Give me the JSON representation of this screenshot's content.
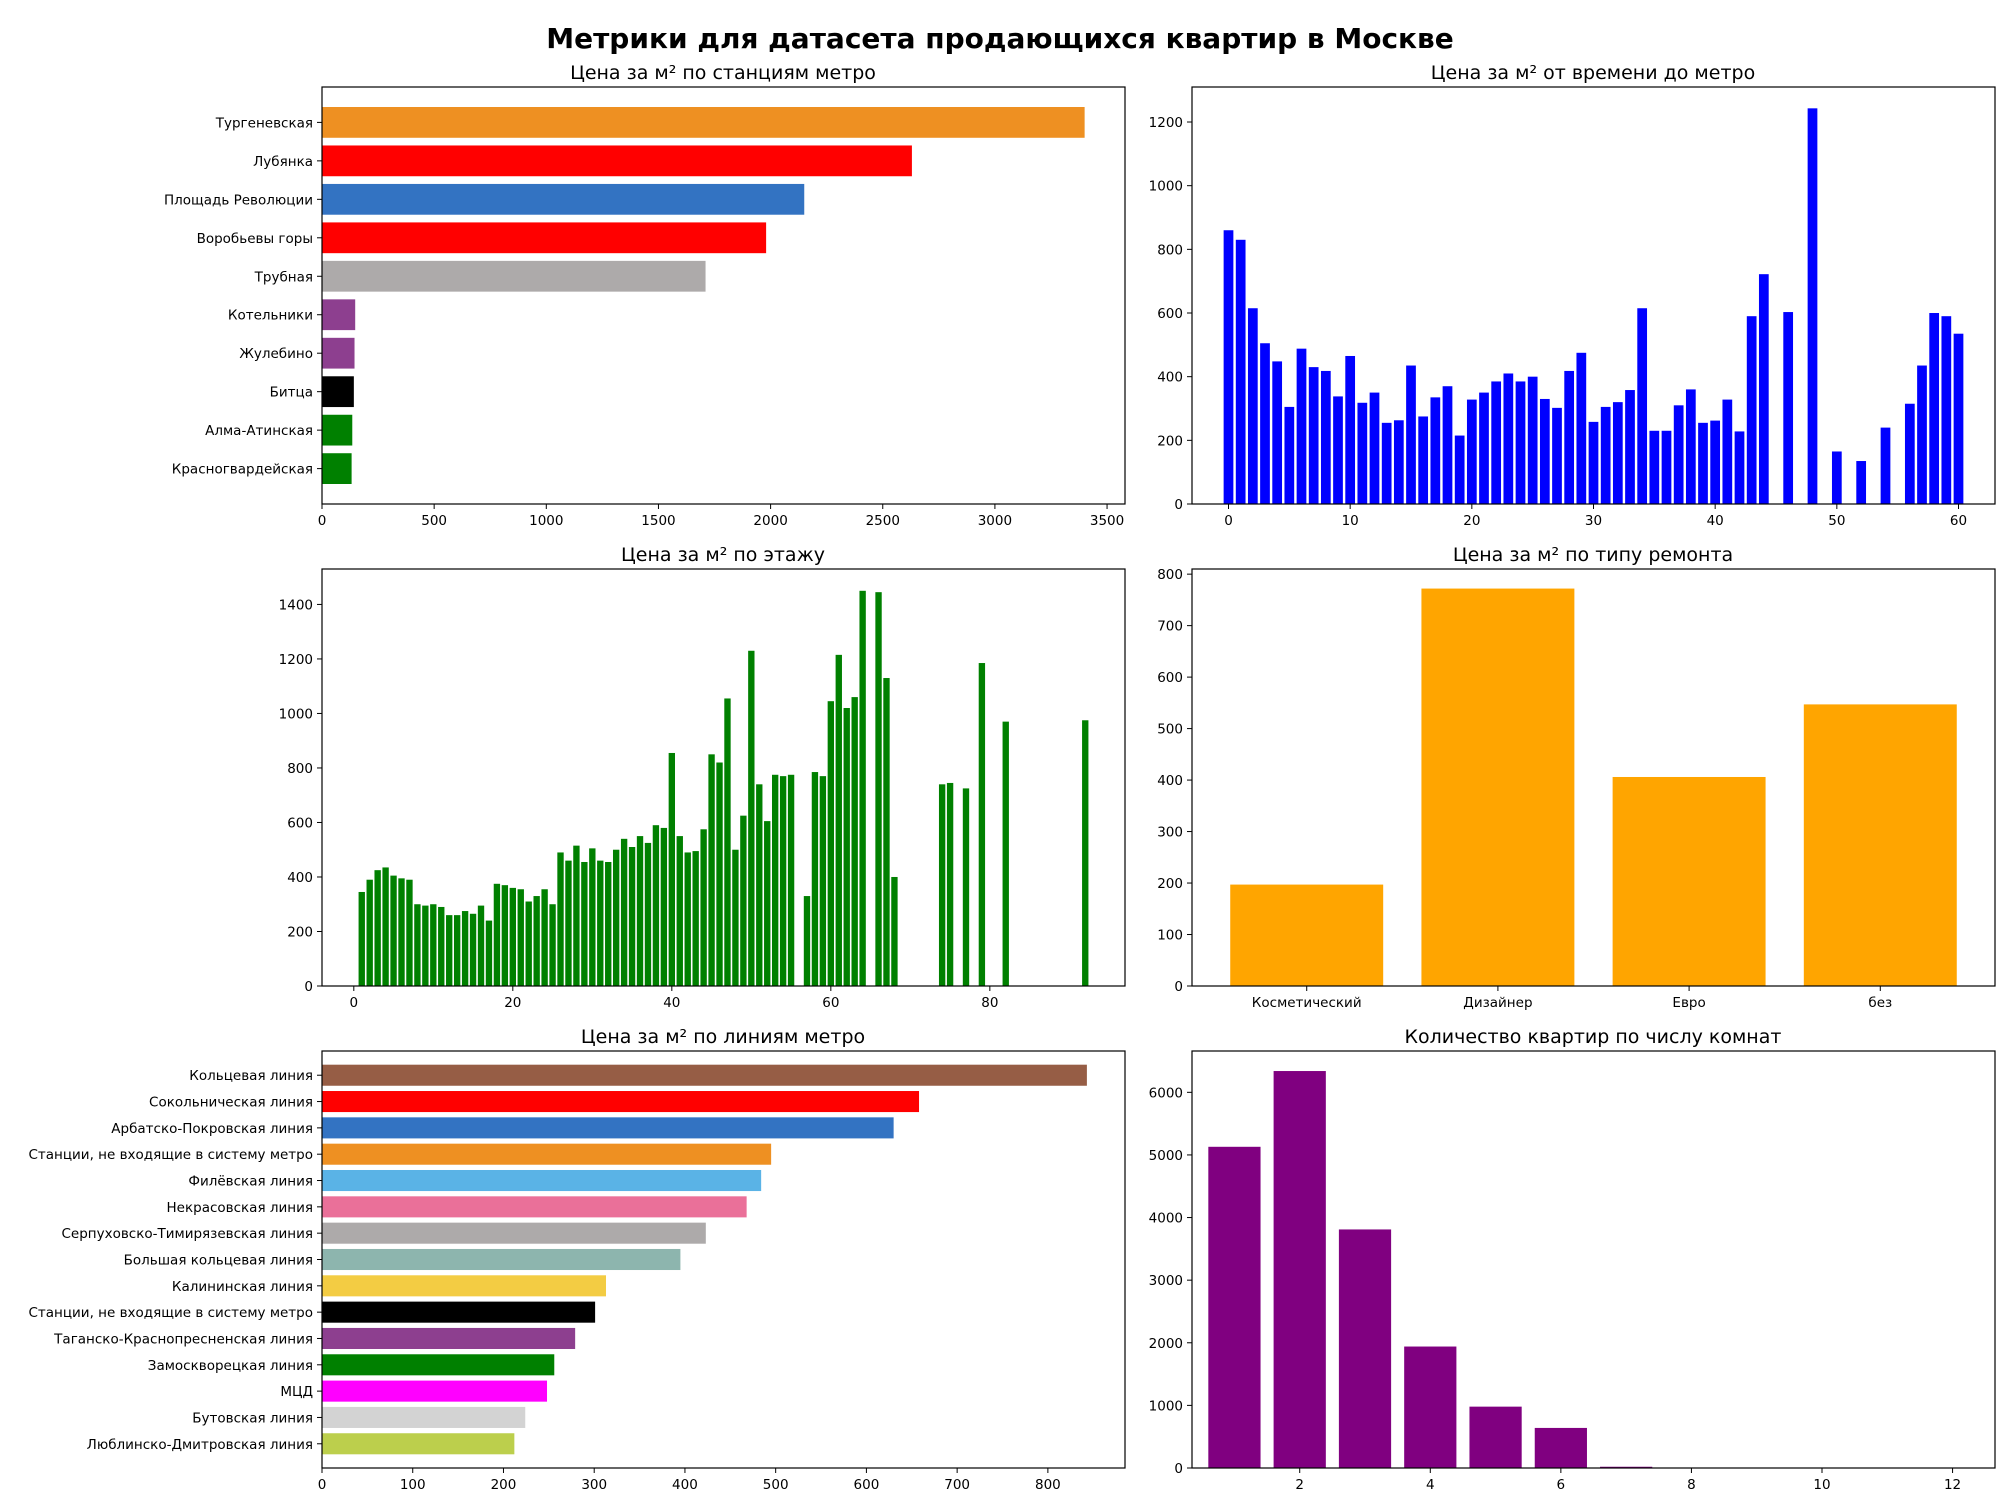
{
  "title": "Метрики для датасета продающихся квартир в Москве",
  "chart_data": [
    {
      "id": "stations",
      "type": "bar",
      "orientation": "horizontal",
      "title": "Цена за м² по станциям метро",
      "categories": [
        "Тургеневская",
        "Лубянка",
        "Площадь Революции",
        "Воробьевы горы",
        "Трубная",
        "Котельники",
        "Жулебино",
        "Битца",
        "Алма-Атинская",
        "Красногвардейская"
      ],
      "values": [
        3400,
        2630,
        2150,
        1980,
        1710,
        148,
        145,
        142,
        135,
        132
      ],
      "colors": [
        "#ee9022",
        "#ff0000",
        "#3373c2",
        "#ff0000",
        "#adaaaa",
        "#8d3f8f",
        "#8d3f8f",
        "#000000",
        "#008000",
        "#008000"
      ],
      "xlim": [
        0,
        3580
      ],
      "xticks": [
        0,
        500,
        1000,
        1500,
        2000,
        2500,
        3000,
        3500
      ]
    },
    {
      "id": "time",
      "type": "bar",
      "title": "Цена за м² от времени до метро",
      "color": "#0000ff",
      "x": [
        0,
        1,
        2,
        3,
        4,
        5,
        6,
        7,
        8,
        9,
        10,
        11,
        12,
        13,
        14,
        15,
        16,
        17,
        18,
        19,
        20,
        21,
        22,
        23,
        24,
        25,
        26,
        27,
        28,
        29,
        30,
        31,
        32,
        33,
        34,
        35,
        36,
        37,
        38,
        39,
        40,
        41,
        42,
        43,
        44,
        46,
        48,
        50,
        52,
        54,
        56,
        57,
        58,
        59,
        60
      ],
      "values": [
        860,
        830,
        615,
        505,
        448,
        305,
        488,
        430,
        418,
        338,
        465,
        318,
        350,
        255,
        263,
        435,
        275,
        335,
        370,
        215,
        328,
        350,
        385,
        410,
        385,
        400,
        330,
        302,
        418,
        475,
        258,
        305,
        320,
        358,
        615,
        230,
        230,
        310,
        360,
        255,
        262,
        328,
        228,
        590,
        722,
        603,
        1243,
        165,
        135,
        240,
        315,
        435,
        600,
        590,
        535
      ],
      "xlim": [
        -3,
        63
      ],
      "ylim": [
        0,
        1310
      ],
      "xticks": [
        0,
        10,
        20,
        30,
        40,
        50,
        60
      ],
      "yticks": [
        0,
        200,
        400,
        600,
        800,
        1000,
        1200
      ]
    },
    {
      "id": "floor",
      "type": "bar",
      "title": "Цена за м² по этажу",
      "color": "#008000",
      "x": [
        1,
        2,
        3,
        4,
        5,
        6,
        7,
        8,
        9,
        10,
        11,
        12,
        13,
        14,
        15,
        16,
        17,
        18,
        19,
        20,
        21,
        22,
        23,
        24,
        25,
        26,
        27,
        28,
        29,
        30,
        31,
        32,
        33,
        34,
        35,
        36,
        37,
        38,
        39,
        40,
        41,
        42,
        43,
        44,
        45,
        46,
        47,
        48,
        49,
        50,
        51,
        52,
        53,
        54,
        55,
        57,
        58,
        59,
        60,
        61,
        62,
        63,
        64,
        66,
        67,
        68,
        74,
        75,
        77,
        79,
        82,
        92
      ],
      "values": [
        345,
        390,
        425,
        435,
        405,
        395,
        390,
        300,
        295,
        300,
        290,
        260,
        260,
        275,
        265,
        295,
        240,
        375,
        370,
        360,
        355,
        310,
        330,
        355,
        300,
        490,
        460,
        515,
        455,
        505,
        460,
        455,
        500,
        540,
        510,
        550,
        525,
        590,
        580,
        855,
        550,
        490,
        495,
        575,
        850,
        820,
        1055,
        500,
        625,
        1230,
        740,
        605,
        775,
        770,
        775,
        330,
        785,
        770,
        1045,
        1215,
        1020,
        1060,
        1450,
        1445,
        1130,
        400,
        740,
        745,
        725,
        1185,
        970,
        975
      ],
      "xlim": [
        -4,
        97
      ],
      "ylim": [
        0,
        1530
      ],
      "xticks": [
        0,
        20,
        40,
        60,
        80
      ],
      "yticks": [
        0,
        200,
        400,
        600,
        800,
        1000,
        1200,
        1400
      ]
    },
    {
      "id": "repair",
      "type": "bar",
      "title": "Цена за м² по типу ремонта",
      "color": "#ffa500",
      "categories": [
        "Косметический",
        "Дизайнер",
        "Евро",
        "без"
      ],
      "values": [
        197,
        772,
        406,
        547
      ],
      "ylim": [
        0,
        810
      ],
      "yticks": [
        0,
        100,
        200,
        300,
        400,
        500,
        600,
        700,
        800
      ]
    },
    {
      "id": "lines",
      "type": "bar",
      "orientation": "horizontal",
      "title": "Цена за м² по линиям метро",
      "categories": [
        "Кольцевая линия",
        "Сокольническая линия",
        "Арбатско-Покровская линия",
        "Станции, не входящие в систему метро",
        "Филёвская линия",
        "Некрасовская линия",
        "Серпуховско-Тимирязевская линия",
        "Большая кольцевая линия",
        "Калининская линия",
        "Станции, не входящие в систему метро",
        "Таганско-Краснопресненская линия",
        "Замоскворецкая линия",
        "МЦД",
        "Бутовская линия",
        "Люблинско-Дмитровская линия"
      ],
      "values": [
        843,
        658,
        630,
        495,
        484,
        468,
        423,
        395,
        313,
        301,
        279,
        256,
        248,
        224,
        212
      ],
      "colors": [
        "#965d45",
        "#ff0000",
        "#3373c2",
        "#ee9022",
        "#5ab3e6",
        "#ea7099",
        "#adaaaa",
        "#8db5ae",
        "#f3cc43",
        "#000000",
        "#8d3f8f",
        "#008000",
        "#ff00ff",
        "#d3d3d3",
        "#bccf4c"
      ],
      "xlim": [
        0,
        885
      ],
      "xticks": [
        0,
        100,
        200,
        300,
        400,
        500,
        600,
        700,
        800
      ]
    },
    {
      "id": "rooms",
      "type": "bar",
      "title": "Количество квартир по числу комнат",
      "color": "#800080",
      "x": [
        1,
        2,
        3,
        4,
        5,
        6,
        7
      ],
      "values": [
        5130,
        6340,
        3810,
        1940,
        980,
        640,
        20
      ],
      "xlim": [
        0.35,
        12.65
      ],
      "ylim": [
        0,
        6660
      ],
      "xticks": [
        2,
        4,
        6,
        8,
        10,
        12
      ],
      "yticks": [
        0,
        1000,
        2000,
        3000,
        4000,
        5000,
        6000
      ]
    }
  ]
}
